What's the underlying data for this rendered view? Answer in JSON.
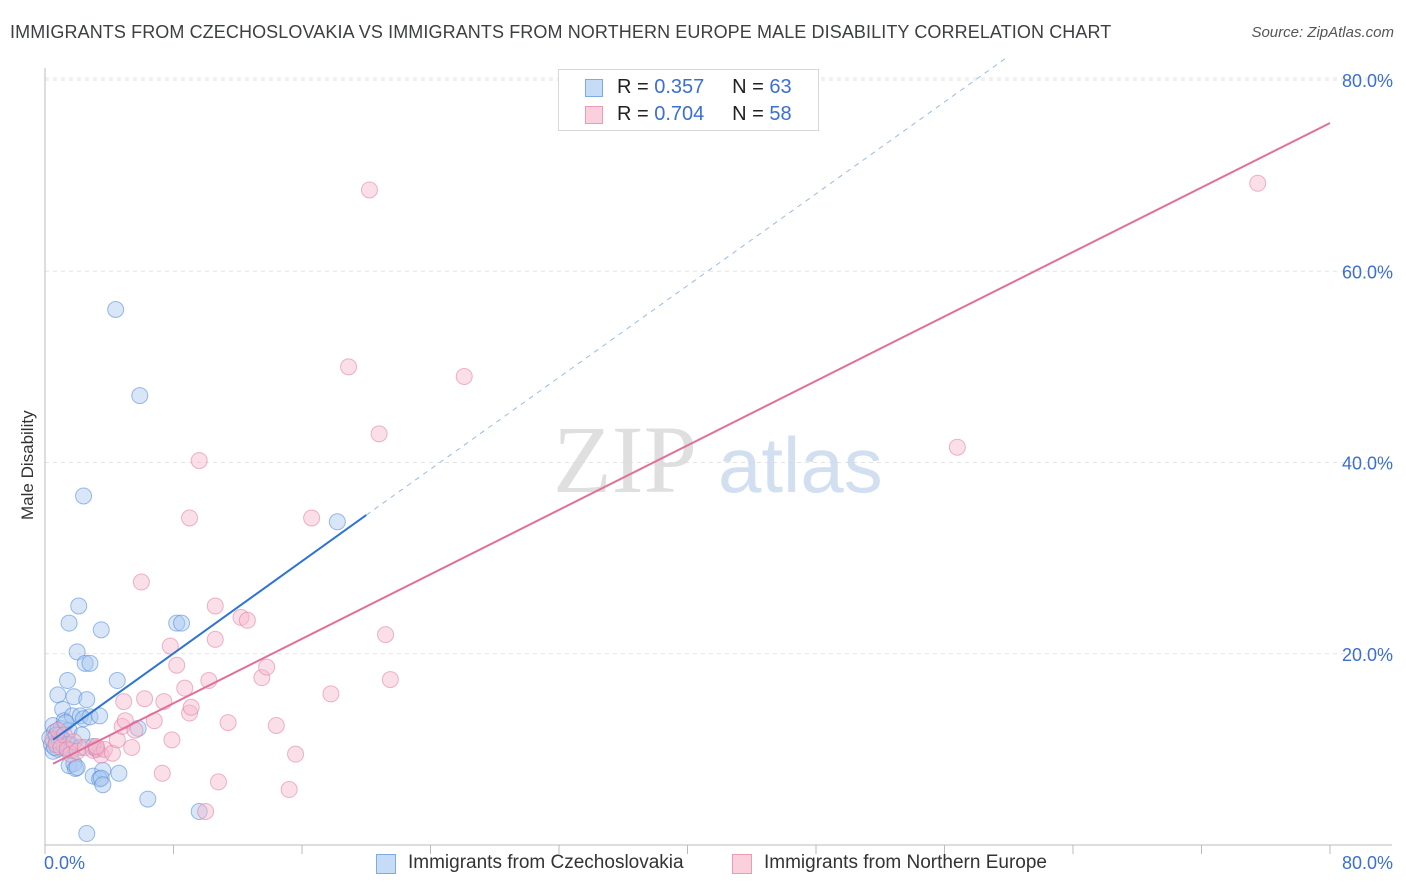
{
  "header": {
    "title": "IMMIGRANTS FROM CZECHOSLOVAKIA VS IMMIGRANTS FROM NORTHERN EUROPE MALE DISABILITY CORRELATION CHART",
    "source": "Source: ZipAtlas.com"
  },
  "watermark": {
    "zip": "ZIP",
    "atlas": "atlas"
  },
  "legend": {
    "rows": [
      {
        "r_label": "R =",
        "r_value": "0.357",
        "n_label": "N =",
        "n_value": "63",
        "color": "#a9c8f0"
      },
      {
        "r_label": "R =",
        "r_value": "0.704",
        "n_label": "N =",
        "n_value": "58",
        "color": "#f6b8cb"
      }
    ]
  },
  "chart_data": {
    "type": "scatter",
    "title": "IMMIGRANTS FROM CZECHOSLOVAKIA VS IMMIGRANTS FROM NORTHERN EUROPE MALE DISABILITY CORRELATION CHART",
    "xlabel": "",
    "ylabel": "Male Disability",
    "xlim": [
      0,
      80
    ],
    "ylim": [
      0,
      80
    ],
    "x_tick_labels": [
      "0.0%",
      "80.0%"
    ],
    "y_tick_labels": [
      "20.0%",
      "40.0%",
      "60.0%",
      "80.0%"
    ],
    "y_ticks": [
      20,
      40,
      60,
      80
    ],
    "grid": true,
    "series": [
      {
        "name": "Immigrants from Czechoslovakia",
        "color": "#4a86d8",
        "fill": "#a9c8f0",
        "r": 0.357,
        "n": 63,
        "trend": {
          "x0": 0.5,
          "y0": 11.0,
          "x1": 20.0,
          "y1": 34.5,
          "dash_to_x": 60.0,
          "dash_to_y": 82.5
        },
        "points": [
          [
            0.3,
            11.2
          ],
          [
            0.4,
            10.5
          ],
          [
            0.5,
            12.5
          ],
          [
            0.6,
            11.8
          ],
          [
            0.7,
            10.8
          ],
          [
            0.8,
            10.0
          ],
          [
            0.9,
            11.5
          ],
          [
            1.0,
            12.2
          ],
          [
            0.5,
            9.8
          ],
          [
            0.6,
            10.2
          ],
          [
            0.8,
            15.7
          ],
          [
            1.0,
            11.2
          ],
          [
            1.1,
            14.2
          ],
          [
            1.2,
            13.0
          ],
          [
            1.3,
            10.2
          ],
          [
            1.4,
            17.2
          ],
          [
            1.5,
            12.0
          ],
          [
            1.6,
            10.5
          ],
          [
            1.7,
            13.5
          ],
          [
            1.8,
            15.5
          ],
          [
            1.5,
            8.3
          ],
          [
            1.8,
            8.5
          ],
          [
            1.9,
            8.0
          ],
          [
            2.0,
            20.2
          ],
          [
            2.1,
            25.0
          ],
          [
            1.5,
            23.2
          ],
          [
            2.2,
            13.5
          ],
          [
            2.3,
            11.5
          ],
          [
            2.4,
            13.2
          ],
          [
            2.5,
            19.0
          ],
          [
            2.6,
            15.2
          ],
          [
            2.8,
            13.4
          ],
          [
            3.0,
            7.2
          ],
          [
            2.8,
            19.0
          ],
          [
            3.2,
            10.0
          ],
          [
            3.4,
            13.5
          ],
          [
            3.5,
            22.5
          ],
          [
            3.6,
            7.8
          ],
          [
            3.4,
            6.9
          ],
          [
            3.5,
            7.0
          ],
          [
            4.5,
            17.2
          ],
          [
            4.6,
            7.5
          ],
          [
            2.4,
            36.5
          ],
          [
            4.4,
            56.0
          ],
          [
            5.8,
            12.2
          ],
          [
            5.9,
            47.0
          ],
          [
            6.4,
            4.8
          ],
          [
            8.2,
            23.2
          ],
          [
            8.5,
            23.2
          ],
          [
            9.6,
            3.5
          ],
          [
            18.2,
            33.8
          ],
          [
            2.6,
            1.2
          ],
          [
            3.6,
            6.3
          ],
          [
            1.1,
            11.0
          ],
          [
            0.9,
            10.8
          ],
          [
            1.2,
            10.3
          ],
          [
            1.3,
            12.8
          ],
          [
            0.7,
            11.5
          ],
          [
            1.4,
            10.5
          ],
          [
            1.6,
            9.9
          ],
          [
            2.0,
            8.1
          ],
          [
            2.2,
            10.2
          ],
          [
            3.0,
            10.3
          ]
        ]
      },
      {
        "name": "Immigrants from Northern Europe",
        "color": "#e07aa0",
        "fill": "#f6b8cb",
        "r": 0.704,
        "n": 58,
        "trend": {
          "x0": 0.5,
          "y0": 8.5,
          "x1": 80.0,
          "y1": 75.5
        },
        "points": [
          [
            0.5,
            11.0
          ],
          [
            0.7,
            10.5
          ],
          [
            0.8,
            12.0
          ],
          [
            1.0,
            10.2
          ],
          [
            1.2,
            11.5
          ],
          [
            1.4,
            10.0
          ],
          [
            1.6,
            9.5
          ],
          [
            1.8,
            10.8
          ],
          [
            2.0,
            9.8
          ],
          [
            2.5,
            10.2
          ],
          [
            3.0,
            9.9
          ],
          [
            3.2,
            10.1
          ],
          [
            3.5,
            9.4
          ],
          [
            3.7,
            10.0
          ],
          [
            4.2,
            9.6
          ],
          [
            4.5,
            11.0
          ],
          [
            4.8,
            12.4
          ],
          [
            5.0,
            13.0
          ],
          [
            5.4,
            10.2
          ],
          [
            5.6,
            12.0
          ],
          [
            6.2,
            15.3
          ],
          [
            6.8,
            13.0
          ],
          [
            7.4,
            15.0
          ],
          [
            7.9,
            11.0
          ],
          [
            8.2,
            18.8
          ],
          [
            8.7,
            16.4
          ],
          [
            9.0,
            13.8
          ],
          [
            9.1,
            14.4
          ],
          [
            9.6,
            40.2
          ],
          [
            9.0,
            34.2
          ],
          [
            10.2,
            17.2
          ],
          [
            10.6,
            21.5
          ],
          [
            10.8,
            6.6
          ],
          [
            11.4,
            12.8
          ],
          [
            12.2,
            23.8
          ],
          [
            12.6,
            23.5
          ],
          [
            13.5,
            17.5
          ],
          [
            13.8,
            18.6
          ],
          [
            14.4,
            12.5
          ],
          [
            15.2,
            5.8
          ],
          [
            15.6,
            9.5
          ],
          [
            16.6,
            34.2
          ],
          [
            17.8,
            15.8
          ],
          [
            18.9,
            50.0
          ],
          [
            20.2,
            68.5
          ],
          [
            20.8,
            43.0
          ],
          [
            21.2,
            22.0
          ],
          [
            21.5,
            17.3
          ],
          [
            26.1,
            49.0
          ],
          [
            6.0,
            27.5
          ],
          [
            7.8,
            20.8
          ],
          [
            10.6,
            25.0
          ],
          [
            56.8,
            41.6
          ],
          [
            75.5,
            69.2
          ],
          [
            4.9,
            15.0
          ],
          [
            3.2,
            10.3
          ],
          [
            7.3,
            7.5
          ],
          [
            10.0,
            3.5
          ]
        ]
      }
    ]
  },
  "bottom_legend": {
    "items": [
      {
        "label": "Immigrants from Czechoslovakia"
      },
      {
        "label": "Immigrants from Northern Europe"
      }
    ]
  }
}
